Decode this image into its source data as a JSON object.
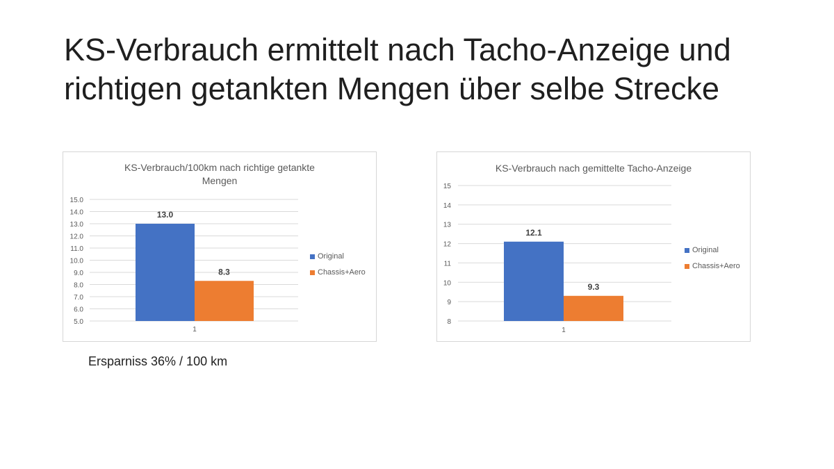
{
  "slide": {
    "title": "KS-Verbrauch ermittelt nach Tacho-Anzeige und richtigen getankten Mengen über selbe Strecke",
    "note": "Ersparniss 36% / 100 km"
  },
  "colors": {
    "original": "#4472C4",
    "chassis_aero": "#ED7D31",
    "grid": "#d9d9d9",
    "axis_text": "#595959"
  },
  "chart_data": [
    {
      "type": "bar",
      "title": "KS-Verbrauch/100km  nach richtige getankte Mengen",
      "categories": [
        "1"
      ],
      "series": [
        {
          "name": "Original",
          "values": [
            13.0
          ],
          "label": "13.0"
        },
        {
          "name": "Chassis+Aero",
          "values": [
            8.3
          ],
          "label": "8.3"
        }
      ],
      "ylim": [
        5.0,
        15.0
      ],
      "yticks": [
        "5.0",
        "6.0",
        "7.0",
        "8.0",
        "9.0",
        "10.0",
        "11.0",
        "12.0",
        "13.0",
        "14.0",
        "15.0"
      ],
      "grid": true,
      "legend": "right"
    },
    {
      "type": "bar",
      "title": "KS-Verbrauch nach gemittelte Tacho-Anzeige",
      "categories": [
        "1"
      ],
      "series": [
        {
          "name": "Original",
          "values": [
            12.1
          ],
          "label": "12.1"
        },
        {
          "name": "Chassis+Aero",
          "values": [
            9.3
          ],
          "label": "9.3"
        }
      ],
      "ylim": [
        8,
        15
      ],
      "yticks": [
        "8",
        "9",
        "10",
        "11",
        "12",
        "13",
        "14",
        "15"
      ],
      "grid": true,
      "legend": "right"
    }
  ]
}
